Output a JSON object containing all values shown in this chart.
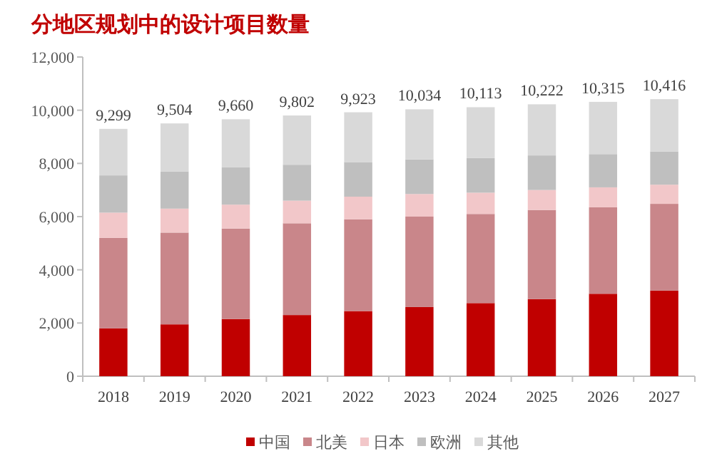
{
  "chart_data": {
    "type": "bar",
    "stacked": true,
    "title": "分地区规划中的设计项目数量",
    "categories": [
      "2018",
      "2019",
      "2020",
      "2021",
      "2022",
      "2023",
      "2024",
      "2025",
      "2026",
      "2027"
    ],
    "series": [
      {
        "name": "中国",
        "color": "#c00000",
        "values": [
          1800,
          1950,
          2150,
          2300,
          2450,
          2600,
          2750,
          2900,
          3100,
          3220
        ]
      },
      {
        "name": "北美",
        "color": "#c9868a",
        "values": [
          3400,
          3450,
          3400,
          3450,
          3450,
          3400,
          3350,
          3350,
          3250,
          3260
        ]
      },
      {
        "name": "日本",
        "color": "#f2c7c9",
        "values": [
          950,
          900,
          900,
          850,
          850,
          850,
          800,
          750,
          750,
          720
        ]
      },
      {
        "name": "欧洲",
        "color": "#bfbfbf",
        "values": [
          1400,
          1400,
          1400,
          1350,
          1300,
          1300,
          1300,
          1300,
          1250,
          1250
        ]
      },
      {
        "name": "其他",
        "color": "#d9d9d9",
        "values": [
          1749,
          1804,
          1810,
          1852,
          1873,
          1884,
          1913,
          1922,
          1965,
          1966
        ]
      }
    ],
    "totals": [
      "9,299",
      "9,504",
      "9,660",
      "9,802",
      "9,923",
      "10,034",
      "10,113",
      "10,222",
      "10,315",
      "10,416"
    ],
    "ylim": [
      0,
      12000
    ],
    "yticks": [
      {
        "value": 0,
        "label": "0"
      },
      {
        "value": 2000,
        "label": "2,000"
      },
      {
        "value": 4000,
        "label": "4,000"
      },
      {
        "value": 6000,
        "label": "6,000"
      },
      {
        "value": 8000,
        "label": "8,000"
      },
      {
        "value": 10000,
        "label": "10,000"
      },
      {
        "value": 12000,
        "label": "12,000"
      }
    ],
    "legend": "bottom",
    "grid": false
  }
}
